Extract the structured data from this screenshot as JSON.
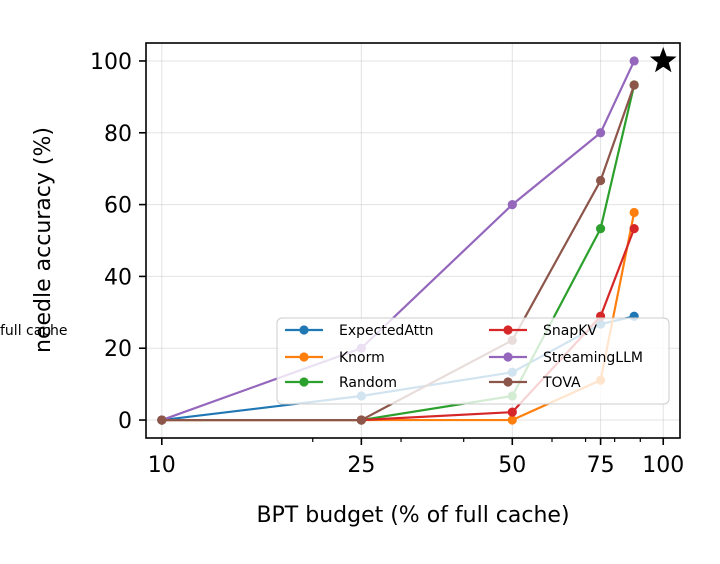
{
  "chart_data": {
    "type": "line",
    "xlabel": "BPT budget (% of full cache)",
    "ylabel": "needle accuracy (%)",
    "x_scale": "log",
    "xlim": [
      9.3,
      108
    ],
    "ylim": [
      -5,
      105
    ],
    "xticks": [
      10,
      25,
      50,
      75,
      100
    ],
    "xtick_labels": [
      "10",
      "25",
      "50",
      "75",
      "100"
    ],
    "yticks": [
      0,
      20,
      40,
      60,
      80,
      100
    ],
    "ytick_labels": [
      "0",
      "20",
      "40",
      "60",
      "80",
      "100"
    ],
    "grid": true,
    "legend_position": "lower-right",
    "series": [
      {
        "name": "ExpectedAttn",
        "color": "#1f77b4",
        "x": [
          10,
          25,
          50,
          75,
          87.5
        ],
        "y": [
          0,
          6.7,
          13.3,
          26.7,
          28.9
        ]
      },
      {
        "name": "Knorm",
        "color": "#ff7f0e",
        "x": [
          10,
          25,
          50,
          75,
          87.5
        ],
        "y": [
          0,
          0,
          0,
          11.1,
          57.8
        ]
      },
      {
        "name": "Random",
        "color": "#2ca02c",
        "x": [
          10,
          25,
          50,
          75,
          87.5
        ],
        "y": [
          0,
          0,
          6.7,
          53.3,
          93.3
        ]
      },
      {
        "name": "SnapKV",
        "color": "#d62728",
        "x": [
          10,
          25,
          50,
          75,
          87.5
        ],
        "y": [
          0,
          0,
          2.2,
          28.9,
          53.3
        ]
      },
      {
        "name": "StreamingLLM",
        "color": "#9467bd",
        "x": [
          10,
          25,
          50,
          75,
          87.5
        ],
        "y": [
          0,
          20,
          60,
          80,
          100
        ]
      },
      {
        "name": "TOVA",
        "color": "#8c564b",
        "x": [
          10,
          25,
          50,
          75,
          87.5
        ],
        "y": [
          0,
          0,
          22.2,
          66.7,
          93.3
        ]
      }
    ],
    "reference_point": {
      "name": "full cache",
      "x": 100,
      "y": 100,
      "marker": "star",
      "color": "#000000"
    }
  }
}
